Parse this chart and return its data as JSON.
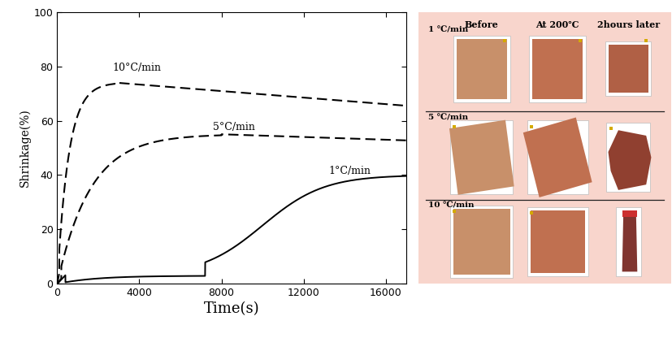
{
  "xlabel": "Time(s)",
  "ylabel": "Shrinkage(%)",
  "xlim": [
    0,
    17000
  ],
  "ylim": [
    0,
    100
  ],
  "xticks": [
    0,
    4000,
    8000,
    12000,
    16000
  ],
  "yticks": [
    0,
    20,
    40,
    60,
    80,
    100
  ],
  "line1_label": "1°C/min",
  "line2_label": "5°C/min",
  "line3_label": "10°C/min",
  "col_headers": [
    "Before",
    "At 200℃",
    "2hours later"
  ],
  "row_labels": [
    "1 ℃/min",
    "5 ℃/min",
    "10 ℃/min"
  ],
  "bg_color": "#f8d5cc",
  "line_color": "#000000",
  "xlabel_fontsize": 13,
  "ylabel_fontsize": 10,
  "tick_fontsize": 9,
  "label_fontsize": 9,
  "col_header_fontsize": 8,
  "row_label_fontsize": 7.5,
  "sample_before_color": "#c8906a",
  "sample_at200_color": "#c07050",
  "sample_after1_color": "#b06045",
  "sample_after5_color": "#904030",
  "sample_after10_color": "#803530",
  "white_bg": "#ffffff",
  "separator_color": "#222222",
  "yellow_marker": "#d4aa00"
}
